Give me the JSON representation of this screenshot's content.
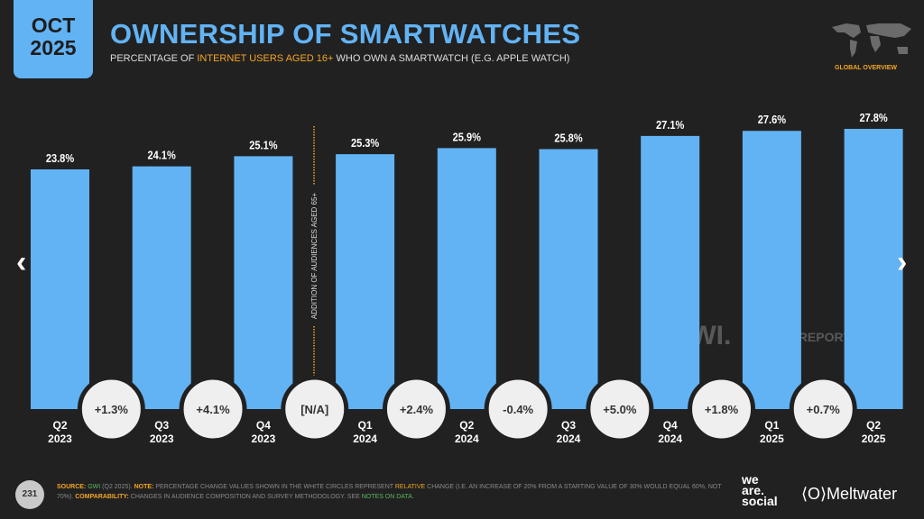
{
  "header": {
    "date_line1": "OCT",
    "date_line2": "2025",
    "title": "OWNERSHIP OF SMARTWATCHES",
    "subtitle_pre": "PERCENTAGE OF ",
    "subtitle_highlight": "INTERNET USERS AGED 16+",
    "subtitle_post": " WHO OWN A SMARTWATCH (E.G. APPLE WATCH)",
    "badge": "GLOBAL OVERVIEW"
  },
  "colors": {
    "background": "#212121",
    "bar": "#62b3f4",
    "accent": "#f5a623",
    "circle": "#efefef"
  },
  "chart_data": {
    "type": "bar",
    "categories": [
      "Q2 2023",
      "Q3 2023",
      "Q4 2023",
      "Q1 2024",
      "Q2 2024",
      "Q3 2024",
      "Q4 2024",
      "Q1 2025",
      "Q2 2025"
    ],
    "values": [
      23.8,
      24.1,
      25.1,
      25.3,
      25.9,
      25.8,
      27.1,
      27.6,
      27.8
    ],
    "data_labels": [
      "23.8%",
      "24.1%",
      "25.1%",
      "25.3%",
      "25.9%",
      "25.8%",
      "27.1%",
      "27.6%",
      "27.8%"
    ],
    "changes": [
      "+1.3%",
      "+4.1%",
      "[N/A]",
      "+2.4%",
      "-0.4%",
      "+5.0%",
      "+1.8%",
      "+0.7%"
    ],
    "annotation": "ADDITION OF AUDIENCES AGED 65+",
    "grid": false
  },
  "watermark": {
    "gwi": "GWI.",
    "datareportal": "DATAREPORTAL"
  },
  "footer": {
    "page": "231",
    "source_label": "SOURCE:",
    "source_link": "GWI",
    "source_rest": " (Q2 2025). ",
    "note_label": "NOTE:",
    "note_pre": " PERCENTAGE CHANGE VALUES SHOWN IN THE WHITE CIRCLES REPRESENT ",
    "note_relative": "RELATIVE",
    "note_post": " CHANGE (I.E. AN INCREASE OF 20% FROM A STARTING VALUE OF 30% WOULD EQUAL 60%, NOT 70%). ",
    "comp_label": "COMPARABILITY:",
    "comp_text": " CHANGES IN AUDIENCE COMPOSITION AND SURVEY METHODOLOGY. SEE ",
    "comp_link": "NOTES ON DATA",
    "comp_end": ".",
    "brand1_l1": "we",
    "brand1_l2": "are.",
    "brand1_l3": "social",
    "brand2": "⟨O⟩Meltwater"
  },
  "nav": {
    "prev": "‹",
    "next": "›"
  }
}
